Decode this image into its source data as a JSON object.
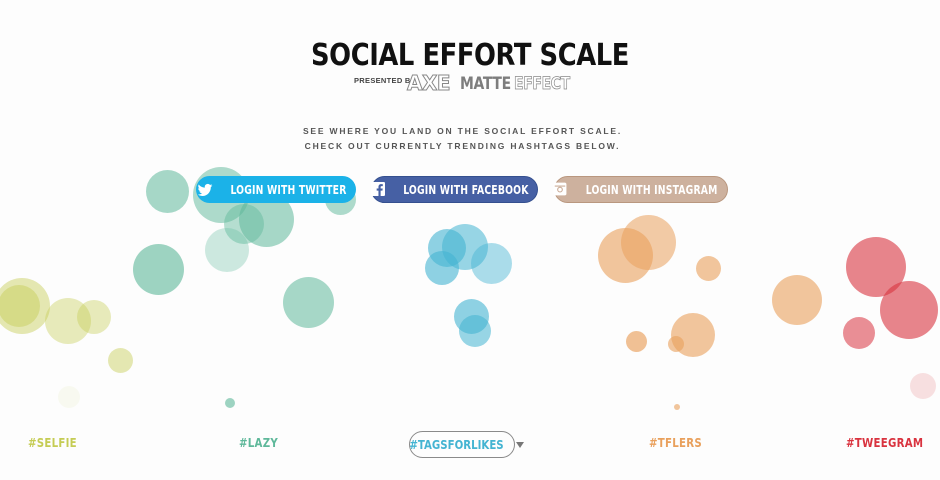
{
  "header": {
    "title": "SOCIAL EFFORT SCALE",
    "presented_by": "PRESENTED BY",
    "brand_axe": "AXE",
    "brand_matte": "MATTE",
    "brand_effect": "EFFECT"
  },
  "intro": {
    "line1": "SEE WHERE YOU LAND ON THE SOCIAL EFFORT SCALE.",
    "line2": "CHECK OUT CURRENTLY TRENDING HASHTAGS BELOW."
  },
  "login": {
    "twitter": "LOGIN WITH TWITTER",
    "facebook": "LOGIN WITH FACEBOOK",
    "instagram": "LOGIN WITH INSTAGRAM"
  },
  "hashtags": {
    "selfie": "#SELFIE",
    "lazy": "#LAZY",
    "tagsforlikes": "#TAGSFORLIKES",
    "tflers": "#TFLERS",
    "tweegram": "#TWEEGRAM"
  },
  "colors": {
    "twitter": "#1bb2e8",
    "facebook": "#4660a4",
    "instagram": "#cdb19e",
    "selfie": "#c5cc54",
    "lazy": "#5eb89a",
    "tagsforlikes": "#44b4d2",
    "tflers": "#e9a05c",
    "tweegram": "#d9333f"
  },
  "icons": {
    "twitter": "twitter-bird-icon",
    "facebook": "facebook-f-icon",
    "instagram": "instagram-camera-icon",
    "dropdown": "chevron-down-icon"
  }
}
